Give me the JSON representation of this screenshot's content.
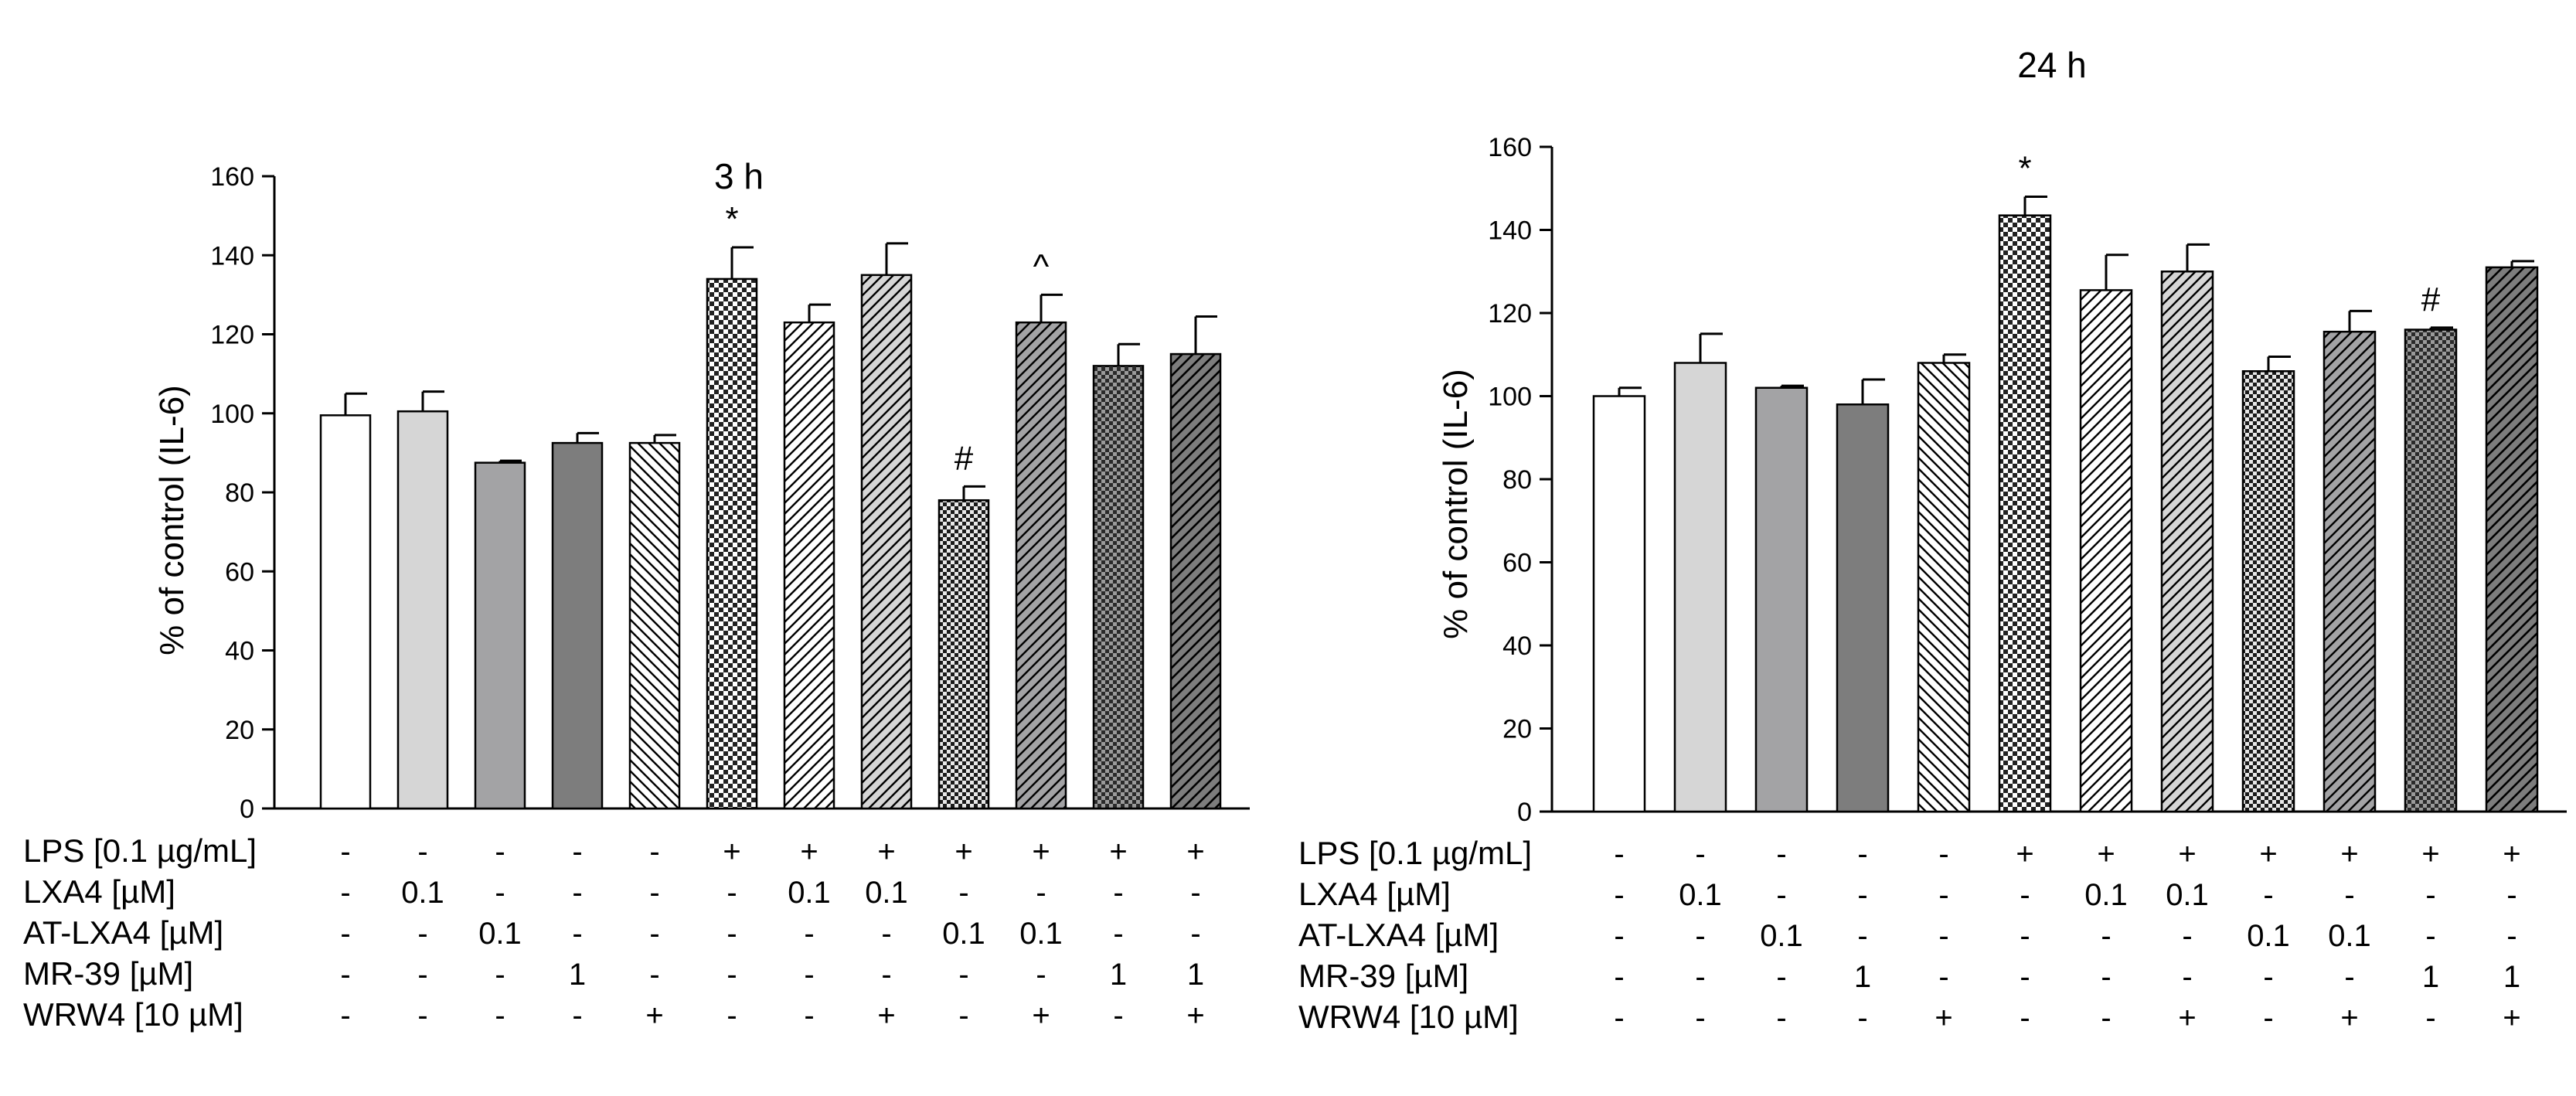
{
  "colors": {
    "white": "#ffffff",
    "light_gray": "#d6d6d6",
    "mid_gray": "#a3a3a5",
    "dark_gray": "#7d7d7d",
    "darker_gray": "#5b5b5b",
    "stroke": "#000000"
  },
  "table_rows": [
    "LPS [0.1 µg/mL]",
    "LXA4 [µM]",
    "AT-LXA4 [µM]",
    "MR-39 [µM]",
    "WRW4 [10 µM]"
  ],
  "chart_data": [
    {
      "type": "bar",
      "title": "3 h",
      "ylabel": "% of control (IL-6)",
      "ylim": [
        0,
        160
      ],
      "yticks": [
        0,
        20,
        40,
        60,
        80,
        100,
        120,
        140,
        160
      ],
      "grid": false,
      "categories": [
        "1",
        "2",
        "3",
        "4",
        "5",
        "6",
        "7",
        "8",
        "9",
        "10",
        "11",
        "12"
      ],
      "values": [
        99.5,
        100.5,
        87.5,
        92.5,
        92.5,
        134,
        123,
        135,
        78,
        123,
        112,
        115
      ],
      "errors": [
        5.5,
        5,
        0.5,
        2.5,
        2,
        8,
        4.5,
        8,
        3.5,
        7,
        5.5,
        9.5
      ],
      "annotations": [
        "",
        "",
        "",
        "",
        "",
        "*",
        "",
        "",
        "#",
        "^",
        "",
        ""
      ],
      "fills": [
        "white",
        "light_gray",
        "mid_gray",
        "dark_gray",
        "hatch_back",
        "checker_light",
        "hatch_fwd_white",
        "hatch_fwd_light",
        "checker_dense",
        "hatch_fwd_mid",
        "checker_dark",
        "hatch_fwd_dark"
      ],
      "treatments": [
        [
          "-",
          "-",
          "-",
          "-",
          "-",
          "+",
          "+",
          "+",
          "+",
          "+",
          "+",
          "+"
        ],
        [
          "-",
          "0.1",
          "-",
          "-",
          "-",
          "-",
          "0.1",
          "0.1",
          "-",
          "-",
          "-",
          "-"
        ],
        [
          "-",
          "-",
          "0.1",
          "-",
          "-",
          "-",
          "-",
          "-",
          "0.1",
          "0.1",
          "-",
          "-"
        ],
        [
          "-",
          "-",
          "-",
          "1",
          "-",
          "-",
          "-",
          "-",
          "-",
          "-",
          "1",
          "1"
        ],
        [
          "-",
          "-",
          "-",
          "-",
          "+",
          "-",
          "-",
          "+",
          "-",
          "+",
          "-",
          "+"
        ]
      ]
    },
    {
      "type": "bar",
      "title": "24 h",
      "ylabel": "% of control (IL-6)",
      "ylim": [
        0,
        160
      ],
      "yticks": [
        0,
        20,
        40,
        60,
        80,
        100,
        120,
        140,
        160
      ],
      "grid": false,
      "categories": [
        "1",
        "2",
        "3",
        "4",
        "5",
        "6",
        "7",
        "8",
        "9",
        "10",
        "11",
        "12"
      ],
      "values": [
        100,
        108,
        102,
        98,
        108,
        143.5,
        125.5,
        130,
        106,
        115.5,
        116,
        131
      ],
      "errors": [
        2,
        7,
        0.5,
        6,
        2,
        4.5,
        8.5,
        6.5,
        3.5,
        5,
        0.5,
        1.5
      ],
      "annotations": [
        "",
        "",
        "",
        "",
        "",
        "*",
        "",
        "",
        "",
        "",
        "#",
        ""
      ],
      "fills": [
        "white",
        "light_gray",
        "mid_gray",
        "dark_gray",
        "hatch_back",
        "checker_light",
        "hatch_fwd_white",
        "hatch_fwd_light",
        "checker_dense",
        "hatch_fwd_mid",
        "checker_dark",
        "hatch_fwd_dark"
      ],
      "treatments": [
        [
          "-",
          "-",
          "-",
          "-",
          "-",
          "+",
          "+",
          "+",
          "+",
          "+",
          "+",
          "+"
        ],
        [
          "-",
          "0.1",
          "-",
          "-",
          "-",
          "-",
          "0.1",
          "0.1",
          "-",
          "-",
          "-",
          "-"
        ],
        [
          "-",
          "-",
          "0.1",
          "-",
          "-",
          "-",
          "-",
          "-",
          "0.1",
          "0.1",
          "-",
          "-"
        ],
        [
          "-",
          "-",
          "-",
          "1",
          "-",
          "-",
          "-",
          "-",
          "-",
          "-",
          "1",
          "1"
        ],
        [
          "-",
          "-",
          "-",
          "-",
          "+",
          "-",
          "-",
          "+",
          "-",
          "+",
          "-",
          "+"
        ]
      ]
    }
  ]
}
